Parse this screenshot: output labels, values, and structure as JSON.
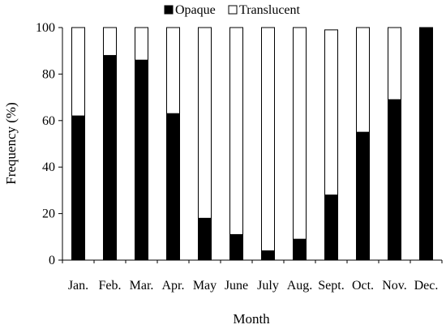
{
  "chart_data": {
    "type": "bar",
    "stacked": true,
    "categories": [
      "Jan.",
      "Feb.",
      "Mar.",
      "Apr.",
      "May",
      "June",
      "July",
      "Aug.",
      "Sept.",
      "Oct.",
      "Nov.",
      "Dec."
    ],
    "series": [
      {
        "name": "Opaque",
        "color": "#000000",
        "values": [
          62,
          88,
          86,
          63,
          18,
          11,
          4,
          9,
          28,
          55,
          69,
          100
        ]
      },
      {
        "name": "Translucent",
        "color": "#ffffff",
        "values": [
          38,
          12,
          14,
          37,
          82,
          89,
          96,
          91,
          71,
          45,
          31,
          0
        ]
      }
    ],
    "xlabel": "Month",
    "ylabel": "Frequency (%)",
    "ylim": [
      0,
      100
    ],
    "yticks": [
      0,
      20,
      40,
      60,
      80,
      100
    ],
    "legend_position": "top",
    "grid": false
  }
}
